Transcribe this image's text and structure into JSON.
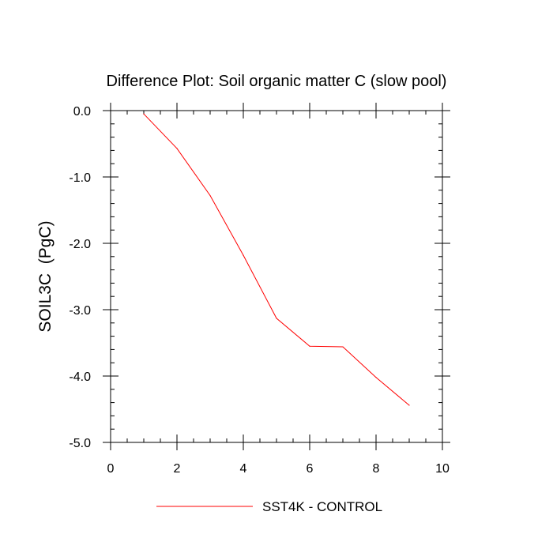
{
  "chart_data": {
    "type": "line",
    "title": "Difference Plot: Soil organic matter C (slow pool)",
    "xlabel": "",
    "ylabel": "SOIL3C  (PgC)",
    "xlim": [
      0,
      10
    ],
    "ylim": [
      -5.0,
      0.0
    ],
    "x_ticks": [
      "0",
      "2",
      "4",
      "6",
      "8",
      "10"
    ],
    "y_ticks": [
      "0.0",
      "-1.0",
      "-2.0",
      "-3.0",
      "-4.0",
      "-5.0"
    ],
    "x_tick_values": [
      0,
      2,
      4,
      6,
      8,
      10
    ],
    "y_tick_values": [
      0,
      -1,
      -2,
      -3,
      -4,
      -5
    ],
    "grid": false,
    "legend_position": "bottom-center",
    "series": [
      {
        "name": "SST4K - CONTROL",
        "color": "#ff0000",
        "x": [
          1,
          2,
          3,
          4,
          5,
          6,
          7,
          8,
          9
        ],
        "y": [
          -0.05,
          -0.57,
          -1.28,
          -2.18,
          -3.13,
          -3.55,
          -3.56,
          -4.02,
          -4.44
        ]
      }
    ]
  }
}
